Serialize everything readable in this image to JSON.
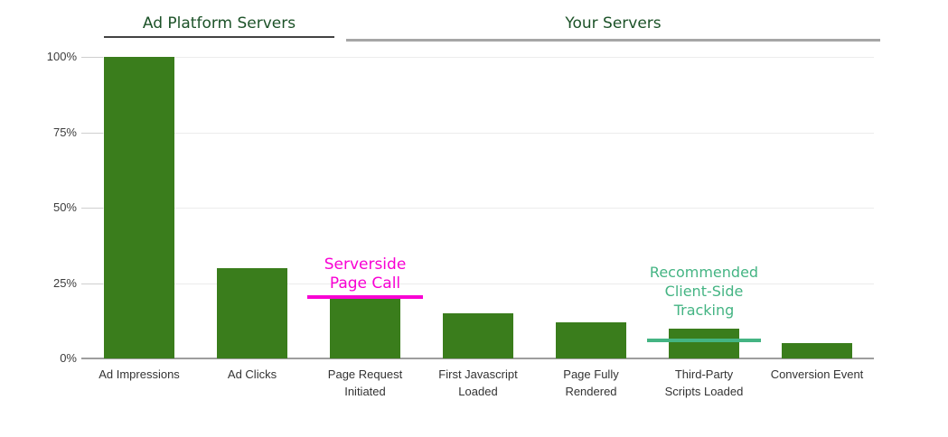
{
  "header": {
    "groups": [
      {
        "label": "Ad Platform Servers"
      },
      {
        "label": "Your Servers"
      }
    ]
  },
  "chart_data": {
    "type": "bar",
    "title": "",
    "categories": [
      "Ad Impressions",
      "Ad Clicks",
      "Page Request Initiated",
      "First Javascript Loaded",
      "Page Fully Rendered",
      "Third-Party Scripts Loaded",
      "Conversion Event"
    ],
    "category_lines": [
      [
        "Ad Impressions"
      ],
      [
        "Ad Clicks"
      ],
      [
        "Page Request",
        "Initiated"
      ],
      [
        "First Javascript",
        "Loaded"
      ],
      [
        "Page Fully",
        "Rendered"
      ],
      [
        "Third-Party",
        "Scripts Loaded"
      ],
      [
        "Conversion Event"
      ]
    ],
    "values": [
      100,
      30,
      20,
      15,
      12,
      10,
      5
    ],
    "value_unit": "percent",
    "xlabel": "",
    "ylabel": "",
    "ylim": [
      0,
      100
    ],
    "y_ticks": [
      {
        "label": "100%",
        "value": 100
      },
      {
        "label": "75%",
        "value": 75
      },
      {
        "label": "50%",
        "value": 50
      },
      {
        "label": "25%",
        "value": 25
      },
      {
        "label": "0%",
        "value": 0
      }
    ],
    "grid": true,
    "legend": "none",
    "bar_color": "#3A7D1C",
    "group_spans": [
      {
        "label": "Ad Platform Servers",
        "first_bar": 0,
        "last_bar": 1
      },
      {
        "label": "Your Servers",
        "first_bar": 2,
        "last_bar": 6
      }
    ],
    "annotations": [
      {
        "text": "Serverside Page Call",
        "lines": [
          "Serverside",
          "Page Call"
        ],
        "color": "#F800D3",
        "bar_index": 2,
        "line_value": 20.5
      },
      {
        "text": "Recommended Client-Side Tracking",
        "lines": [
          "Recommended",
          "Client-Side",
          "Tracking"
        ],
        "color": "#44B483",
        "bar_index": 5,
        "line_value": 6
      }
    ]
  },
  "colors": {
    "bar": "#3A7D1C",
    "section_title": "#1C5228",
    "underline_left": "#424242",
    "underline_right": "#A6A6A6",
    "axis_text": "#3C3C3C",
    "category_text": "#333333",
    "gridline": "#ECECEC",
    "baseline": "#9E9E9E",
    "tick": "#CFCFCF",
    "annotation_magenta": "#F800D3",
    "annotation_teal": "#44B483"
  }
}
